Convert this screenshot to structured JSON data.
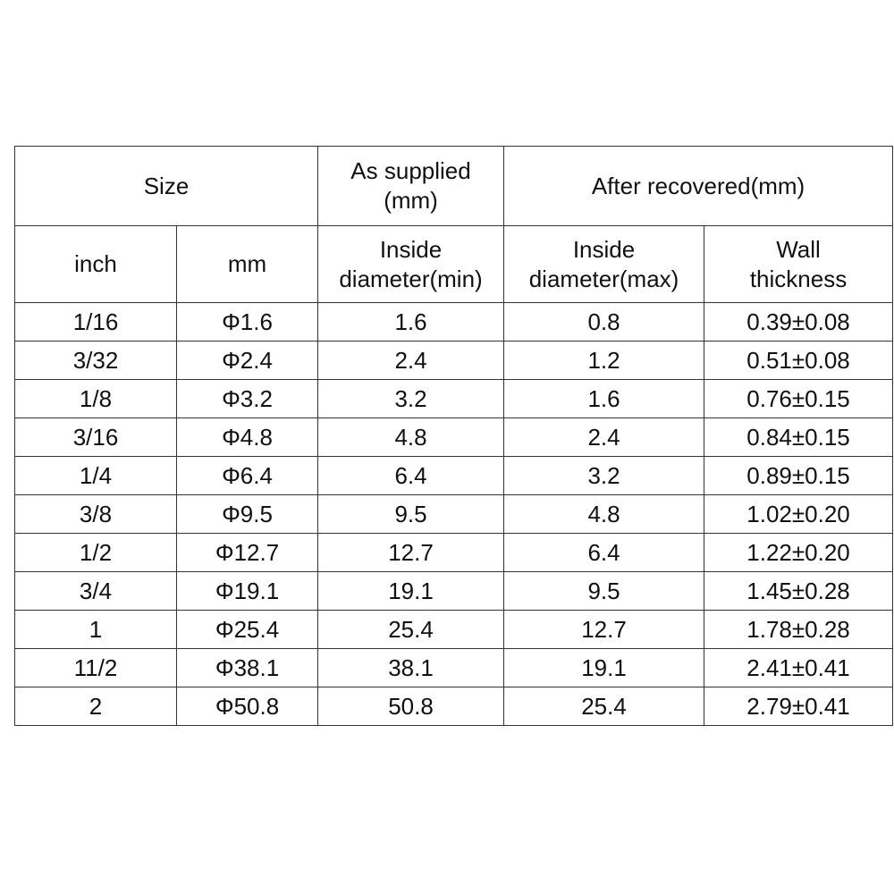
{
  "header": {
    "size": "Size",
    "as_supplied": "As supplied\n(mm)",
    "after_recovered": "After recovered(mm)",
    "columns": [
      "inch",
      "mm",
      "Inside\ndiameter(min)",
      "Inside\ndiameter(max)",
      "Wall\nthickness"
    ]
  },
  "table": {
    "rows": [
      [
        "1/16",
        "Φ1.6",
        "1.6",
        "0.8",
        "0.39±0.08"
      ],
      [
        "3/32",
        "Φ2.4",
        "2.4",
        "1.2",
        "0.51±0.08"
      ],
      [
        "1/8",
        "Φ3.2",
        "3.2",
        "1.6",
        "0.76±0.15"
      ],
      [
        "3/16",
        "Φ4.8",
        "4.8",
        "2.4",
        "0.84±0.15"
      ],
      [
        "1/4",
        "Φ6.4",
        "6.4",
        "3.2",
        "0.89±0.15"
      ],
      [
        "3/8",
        "Φ9.5",
        "9.5",
        "4.8",
        "1.02±0.20"
      ],
      [
        "1/2",
        "Φ12.7",
        "12.7",
        "6.4",
        "1.22±0.20"
      ],
      [
        "3/4",
        "Φ19.1",
        "19.1",
        "9.5",
        "1.45±0.28"
      ],
      [
        "1",
        "Φ25.4",
        "25.4",
        "12.7",
        "1.78±0.28"
      ],
      [
        "11/2",
        "Φ38.1",
        "38.1",
        "19.1",
        "2.41±0.41"
      ],
      [
        "2",
        "Φ50.8",
        "50.8",
        "25.4",
        "2.79±0.41"
      ]
    ]
  }
}
